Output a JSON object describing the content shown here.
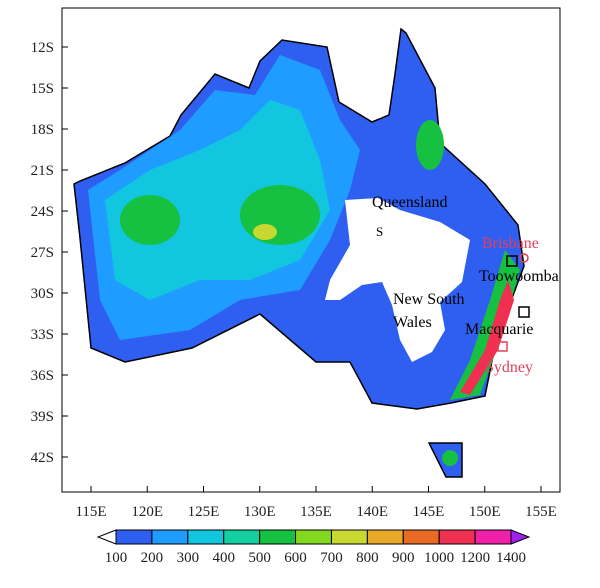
{
  "map": {
    "lat_ticks": [
      "12S",
      "15S",
      "18S",
      "21S",
      "24S",
      "27S",
      "30S",
      "33S",
      "36S",
      "39S",
      "42S"
    ],
    "lon_ticks": [
      "115E",
      "120E",
      "125E",
      "130E",
      "135E",
      "140E",
      "145E",
      "150E",
      "155E"
    ],
    "labels": {
      "queensland": "Queensland",
      "s": "S",
      "brisbane": "Brisbane",
      "toowoomba": "Toowoomba",
      "nsw_1": "New South",
      "nsw_2": "Wales",
      "macquarie": "Macquarie",
      "sydney": "Sydney"
    },
    "colorbar": {
      "levels": [
        100,
        200,
        300,
        400,
        500,
        600,
        700,
        800,
        900,
        1000,
        1200,
        1400
      ],
      "colors": [
        "#ffffff",
        "#2f5ff0",
        "#1e9cff",
        "#12c6e0",
        "#14cfa0",
        "#16c040",
        "#84d820",
        "#c8d830",
        "#e8a828",
        "#e86a24",
        "#f03050",
        "#f020a8",
        "#a020f0"
      ]
    }
  }
}
